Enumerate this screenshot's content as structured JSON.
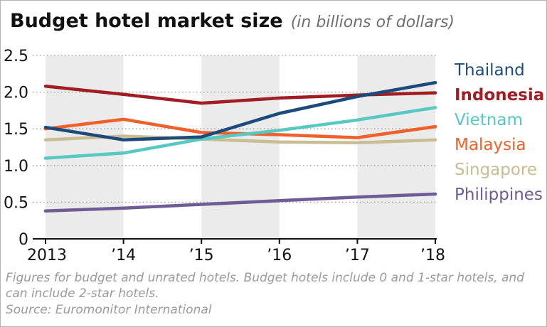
{
  "chart_data": {
    "type": "line",
    "title": "Budget hotel market size",
    "subtitle": "(in billions of dollars)",
    "x": [
      "2013",
      "’14",
      "’15",
      "’16",
      "’17",
      "’18"
    ],
    "ylim": [
      0,
      2.5
    ],
    "yticks": [
      "0",
      "0.5",
      "1.0",
      "1.5",
      "2.0",
      "2.5"
    ],
    "grid": true,
    "legend_position": "right",
    "series": [
      {
        "name": "Thailand",
        "color": "#1c4a7a",
        "values": [
          1.52,
          1.35,
          1.39,
          1.71,
          1.94,
          2.13
        ],
        "bold": false
      },
      {
        "name": "Indonesia",
        "color": "#a01d23",
        "values": [
          2.08,
          1.97,
          1.85,
          1.92,
          1.96,
          1.99
        ],
        "bold": true
      },
      {
        "name": "Vietnam",
        "color": "#57c8c2",
        "values": [
          1.1,
          1.17,
          1.36,
          1.48,
          1.62,
          1.79
        ],
        "bold": false
      },
      {
        "name": "Malaysia",
        "color": "#f0602a",
        "values": [
          1.5,
          1.63,
          1.45,
          1.42,
          1.38,
          1.53
        ],
        "bold": false
      },
      {
        "name": "Singapore",
        "color": "#c9bd94",
        "values": [
          1.35,
          1.4,
          1.36,
          1.32,
          1.31,
          1.35
        ],
        "bold": false
      },
      {
        "name": "Philippines",
        "color": "#6f5b96",
        "values": [
          0.38,
          0.42,
          0.47,
          0.52,
          0.57,
          0.61
        ],
        "bold": false
      }
    ]
  },
  "footnote": "Figures for budget and unrated hotels. Budget hotels include 0 and 1-star hotels, and can include 2-star hotels.",
  "source": "Source: Euromonitor International"
}
